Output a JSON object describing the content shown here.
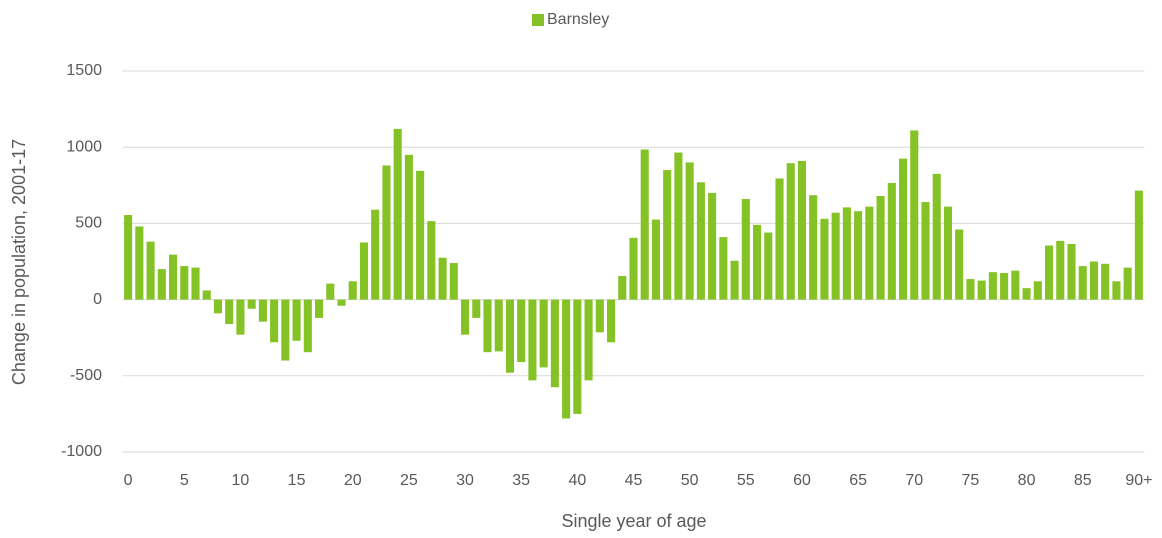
{
  "chart_data": {
    "type": "bar",
    "x_label": "Single year of age",
    "y_label": "Change in population, 2001-17",
    "categories": [
      "0",
      null,
      null,
      null,
      null,
      "5",
      null,
      null,
      null,
      null,
      "10",
      null,
      null,
      null,
      null,
      "15",
      null,
      null,
      null,
      null,
      "20",
      null,
      null,
      null,
      null,
      "25",
      null,
      null,
      null,
      null,
      "30",
      null,
      null,
      null,
      null,
      "35",
      null,
      null,
      null,
      null,
      "40",
      null,
      null,
      null,
      null,
      "45",
      null,
      null,
      null,
      null,
      "50",
      null,
      null,
      null,
      null,
      "55",
      null,
      null,
      null,
      null,
      "60",
      null,
      null,
      null,
      null,
      "65",
      null,
      null,
      null,
      null,
      "70",
      null,
      null,
      null,
      null,
      "75",
      null,
      null,
      null,
      null,
      "80",
      null,
      null,
      null,
      null,
      "85",
      null,
      null,
      null,
      null,
      "90+"
    ],
    "series": [
      {
        "name": "Barnsley",
        "color": "#85c226",
        "values": [
          555,
          480,
          380,
          200,
          295,
          220,
          210,
          60,
          -90,
          -160,
          -230,
          -60,
          -145,
          -280,
          -400,
          -270,
          -345,
          -120,
          105,
          -40,
          120,
          375,
          590,
          880,
          1120,
          950,
          845,
          515,
          275,
          240,
          -230,
          -120,
          -345,
          -340,
          -480,
          -410,
          -530,
          -445,
          -575,
          -780,
          -750,
          -530,
          -215,
          -280,
          155,
          405,
          985,
          525,
          850,
          965,
          900,
          770,
          700,
          410,
          255,
          660,
          490,
          440,
          795,
          895,
          910,
          685,
          530,
          570,
          605,
          580,
          610,
          680,
          765,
          925,
          1110,
          640,
          825,
          610,
          460,
          135,
          125,
          180,
          175,
          190,
          75,
          120,
          355,
          385,
          365,
          220,
          250,
          235,
          120,
          210,
          715
        ]
      }
    ],
    "ylim": [
      -1000,
      1500
    ],
    "yticks": [
      -1000,
      -500,
      0,
      500,
      1000,
      1500
    ],
    "grid": true,
    "legend": "top"
  }
}
